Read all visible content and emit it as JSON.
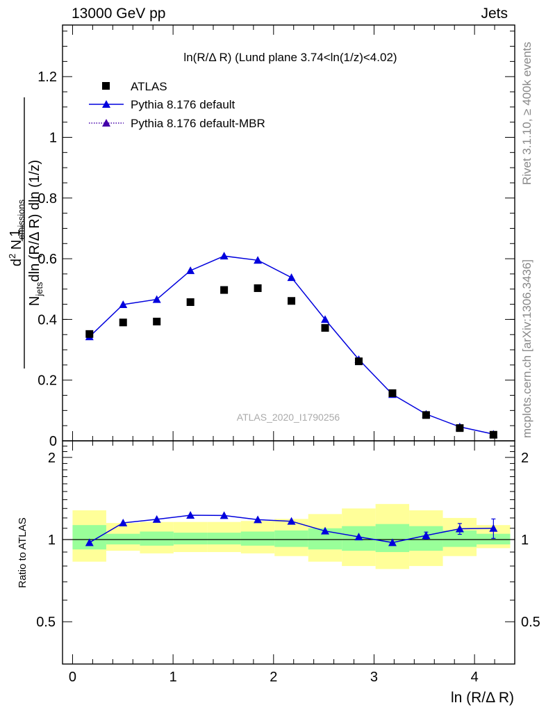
{
  "header": {
    "left": "13000 GeV pp",
    "right": "Jets"
  },
  "side_labels": {
    "rivet": "Rivet 3.1.10, ≥ 400k events",
    "mcplots": "mcplots.cern.ch [arXiv:1306.3436]"
  },
  "chart_data": [
    {
      "type": "scatter",
      "title": "ln(R/Δ R) (Lund plane 3.74<ln(1/z)<4.02)",
      "watermark": "ATLAS_2020_I1790256",
      "ylabel": {
        "prefix": "1",
        "njets": "N",
        "njets_sub": "jets",
        "denominator_rest": "dln (R/Δ R) dln (1/z)",
        "numerator": "d",
        "numerator_sup": "2",
        "numerator_rest": " N",
        "numerator_sub": "emissions"
      },
      "xlim": [
        -0.1,
        4.4
      ],
      "ylim": [
        0,
        1.37
      ],
      "y_ticks": [
        0,
        0.2,
        0.4,
        0.6,
        0.8,
        1,
        1.2
      ],
      "y_tick_labels": [
        "0",
        "0.2",
        "0.4",
        "0.6",
        "0.8",
        "1",
        "1.2"
      ],
      "legend": {
        "placement": "top-left",
        "entries": [
          "ATLAS",
          "Pythia 8.176 default",
          "Pythia 8.176 default-MBR"
        ]
      },
      "x": [
        0.168,
        0.503,
        0.838,
        1.173,
        1.508,
        1.843,
        2.178,
        2.513,
        2.848,
        3.183,
        3.518,
        3.853,
        4.188
      ],
      "series": [
        {
          "name": "ATLAS",
          "marker": "square",
          "color": "#000000",
          "values": [
            0.352,
            0.39,
            0.393,
            0.457,
            0.497,
            0.503,
            0.461,
            0.372,
            0.262,
            0.157,
            0.085,
            0.042,
            0.02
          ]
        },
        {
          "name": "Pythia 8.176 default",
          "marker": "triangle",
          "line": "solid",
          "color": "#0000dd",
          "values": [
            0.343,
            0.449,
            0.466,
            0.561,
            0.609,
            0.595,
            0.538,
            0.4,
            0.268,
            0.153,
            0.088,
            0.046,
            0.022
          ],
          "errors": [
            0.004,
            0.004,
            0.004,
            0.005,
            0.011,
            0.008,
            0.005,
            0.004,
            0.003,
            0.002,
            0.002,
            0.002,
            0.002
          ]
        },
        {
          "name": "Pythia 8.176 default-MBR",
          "marker": "triangle",
          "line": "dotted",
          "color": "#4400aa",
          "values": []
        }
      ]
    },
    {
      "type": "line",
      "ylabel": "Ratio to ATLAS",
      "xlabel": "ln (R/Δ R)",
      "xlim": [
        -0.1,
        4.4
      ],
      "ylim": [
        0.35,
        2.3
      ],
      "x_ticks": [
        0,
        1,
        2,
        3,
        4
      ],
      "x_tick_labels": [
        "0",
        "1",
        "2",
        "3",
        "4"
      ],
      "y_ticks": [
        0.5,
        1,
        2
      ],
      "y_tick_labels": [
        "0.5",
        "1",
        "2"
      ],
      "x_edges": [
        0,
        0.335,
        0.67,
        1.005,
        1.34,
        1.675,
        2.01,
        2.345,
        2.68,
        3.015,
        3.35,
        3.685,
        4.02,
        4.355
      ],
      "band_yellow": [
        [
          0.83,
          1.28
        ],
        [
          0.91,
          1.15
        ],
        [
          0.89,
          1.16
        ],
        [
          0.9,
          1.16
        ],
        [
          0.9,
          1.16
        ],
        [
          0.89,
          1.17
        ],
        [
          0.87,
          1.19
        ],
        [
          0.83,
          1.24
        ],
        [
          0.8,
          1.3
        ],
        [
          0.78,
          1.35
        ],
        [
          0.8,
          1.28
        ],
        [
          0.87,
          1.2
        ],
        [
          0.93,
          1.13
        ]
      ],
      "band_green": [
        [
          0.92,
          1.13
        ],
        [
          0.96,
          1.05
        ],
        [
          0.95,
          1.07
        ],
        [
          0.96,
          1.06
        ],
        [
          0.96,
          1.06
        ],
        [
          0.95,
          1.07
        ],
        [
          0.94,
          1.08
        ],
        [
          0.92,
          1.1
        ],
        [
          0.91,
          1.12
        ],
        [
          0.9,
          1.14
        ],
        [
          0.91,
          1.12
        ],
        [
          0.94,
          1.08
        ],
        [
          0.96,
          1.05
        ]
      ],
      "series": [
        {
          "name": "Pythia 8.176 default",
          "color": "#0000dd",
          "values": [
            0.975,
            1.151,
            1.186,
            1.228,
            1.225,
            1.183,
            1.167,
            1.075,
            1.023,
            0.975,
            1.035,
            1.095,
            1.1
          ],
          "errors": [
            0.01,
            0.01,
            0.01,
            0.01,
            0.02,
            0.015,
            0.012,
            0.012,
            0.013,
            0.015,
            0.03,
            0.05,
            0.09
          ]
        }
      ]
    }
  ]
}
